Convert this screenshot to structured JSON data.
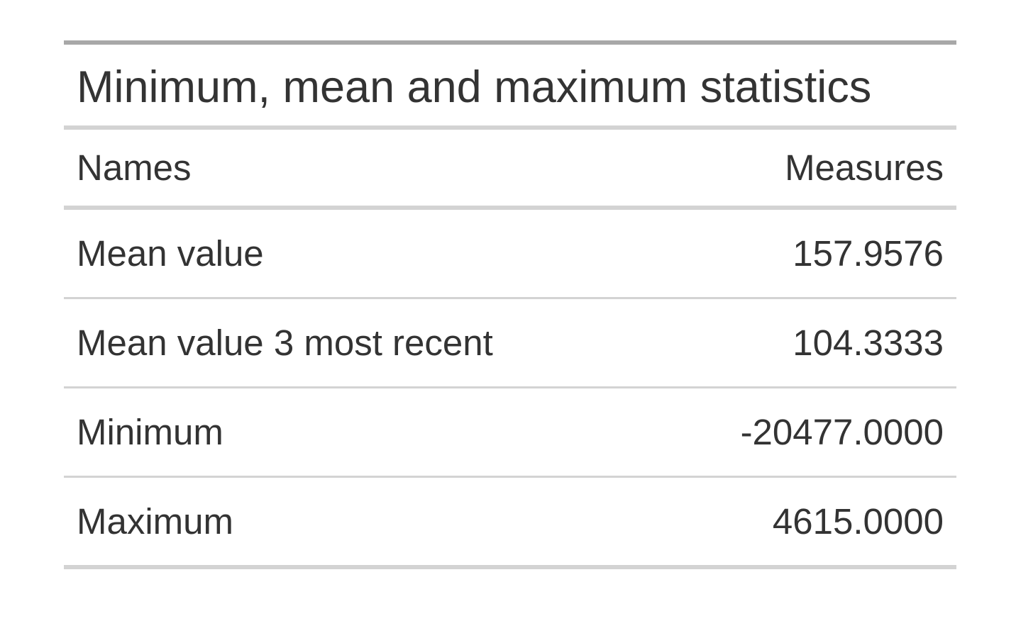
{
  "chart_data": {
    "type": "table",
    "title": "Minimum, mean and maximum statistics",
    "columns": [
      "Names",
      "Measures"
    ],
    "rows": [
      [
        "Mean value",
        "157.9576"
      ],
      [
        "Mean value 3 most recent",
        "104.3333"
      ],
      [
        "Minimum",
        "-20477.0000"
      ],
      [
        "Maximum",
        "4615.0000"
      ]
    ]
  }
}
